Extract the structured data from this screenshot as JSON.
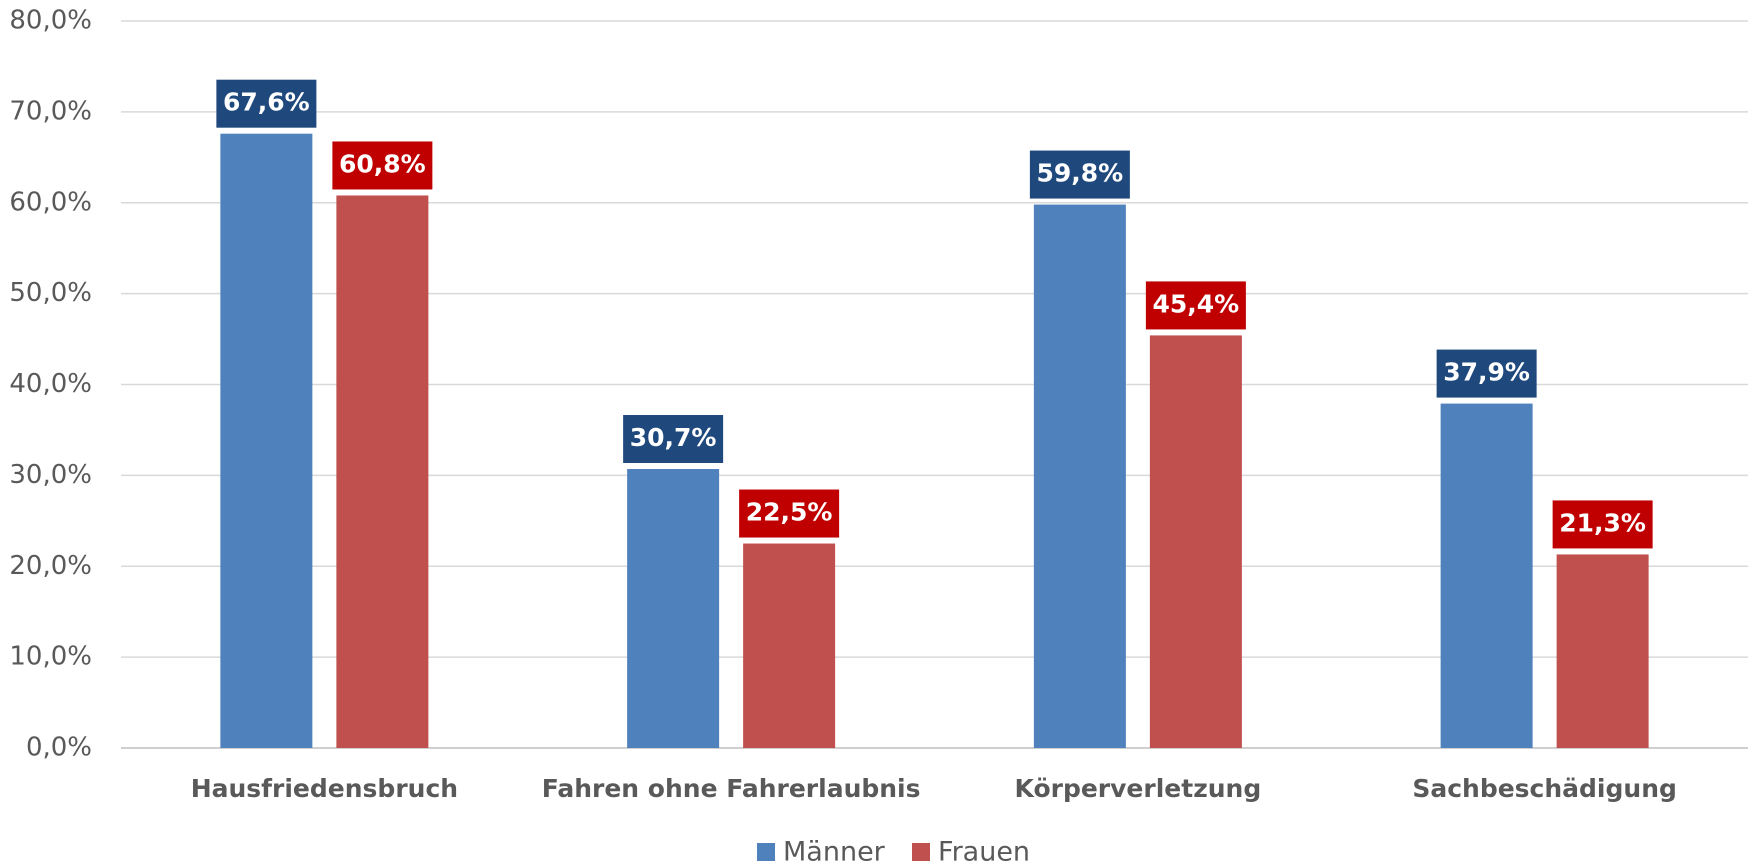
{
  "chart_data": {
    "type": "bar",
    "categories": [
      "Hausfriedensbruch",
      "Fahren ohne Fahrerlaubnis",
      "Körperverletzung",
      "Sachbeschädigung"
    ],
    "series": [
      {
        "name": "Männer",
        "color": "#4f81bd",
        "label_color": "#1f497d",
        "values": [
          67.6,
          30.7,
          59.8,
          37.9
        ],
        "value_labels": [
          "67,6%",
          "30,7%",
          "59,8%",
          "37,9%"
        ]
      },
      {
        "name": "Frauen",
        "color": "#c0504d",
        "label_color": "#c00000",
        "values": [
          60.8,
          22.5,
          45.4,
          21.3
        ],
        "value_labels": [
          "60,8%",
          "22,5%",
          "45,4%",
          "21,3%"
        ]
      }
    ],
    "ylim": [
      0,
      80
    ],
    "yticks": [
      {
        "value": 0,
        "label": "0,0%"
      },
      {
        "value": 10,
        "label": "10,0%"
      },
      {
        "value": 20,
        "label": "20,0%"
      },
      {
        "value": 30,
        "label": "30,0%"
      },
      {
        "value": 40,
        "label": "40,0%"
      },
      {
        "value": 50,
        "label": "50,0%"
      },
      {
        "value": 60,
        "label": "60,0%"
      },
      {
        "value": 70,
        "label": "70,0%"
      },
      {
        "value": 80,
        "label": "80,0%"
      }
    ],
    "grid": true,
    "legend": "bottom"
  }
}
